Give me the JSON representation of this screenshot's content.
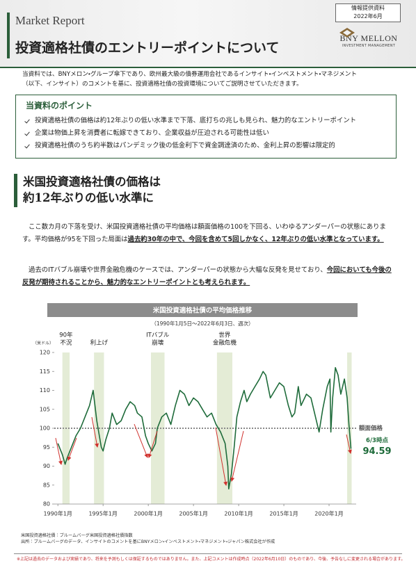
{
  "header": {
    "label": "Market Report",
    "title": "投資適格社債のエントリーポイントについて",
    "badge": [
      "情報提供資料",
      "2022年6月"
    ],
    "logo": [
      "BNY MELLON",
      "INVESTMENT MANAGEMENT"
    ]
  },
  "intro": [
    "当資料では、BNYメロン・グループ傘下であり、欧州最大級の債券運用会社であるインサイト・インベストメント・マネジメント",
    "（以下、インサイト）のコメントを基に、投資適格社債の投資環境についてご説明させていただきます。"
  ],
  "points": {
    "title": "当資料のポイント",
    "items": [
      "投資適格社債の価格は約12年ぶりの低い水準まで下落、底打ちの兆しも見られ、魅力的なエントリーポイント",
      "企業は物価上昇を消費者に転嫁できており、企業収益が圧迫される可能性は低い",
      "投資適格社債のうち約半数はパンデミック後の低金利下で資金調達済のため、金利上昇の影響は限定的"
    ]
  },
  "section": {
    "title": [
      "米国投資適格社債の価格は",
      "約12年ぶりの低い水準に"
    ]
  },
  "paragraphs": [
    [
      "ここ数カ月の下落を受け、米国投資適格社債の平均価格は額面価格の100を下回る、いわゆるアンダーパーの状態にあります。平均価格が95を下回った局面は",
      "過去約30年の中で、今回を含めて5回しかなく、12年ぶりの低い水準となっています。"
    ],
    [
      "過去のITバブル崩壊や世界金融危機のケースでは、アンダーパーの状態から大幅な反発を見せており、",
      "今回においても今後の反発が期待されることから、魅力的なエントリーポイントとも考えられます。"
    ]
  ],
  "chart_data": {
    "type": "line",
    "title": "米国投資適格社債の平均価格推移",
    "subtitle": "（1990年1月5日～2022年6月3日、週次）",
    "y_unit_label": "（米ドル）",
    "xlim": [
      1989.6,
      2023.0
    ],
    "ylim": [
      80,
      120
    ],
    "xticks": [
      {
        "value": 1990,
        "label": "1990年1月"
      },
      {
        "value": 1995,
        "label": "1995年1月"
      },
      {
        "value": 2000,
        "label": "2000年1月"
      },
      {
        "value": 2005,
        "label": "2005年1月"
      },
      {
        "value": 2010,
        "label": "2010年1月"
      },
      {
        "value": 2015,
        "label": "2015年1月"
      },
      {
        "value": 2020,
        "label": "2020年1月"
      }
    ],
    "yticks": [
      80,
      85,
      90,
      95,
      100,
      105,
      110,
      115,
      120
    ],
    "series": [
      {
        "color": "#1e6b3a",
        "x": [
          1990.0,
          1990.5,
          1990.8,
          1991.0,
          1991.5,
          1992.0,
          1992.5,
          1993.0,
          1993.5,
          1993.9,
          1994.3,
          1994.8,
          1995.0,
          1995.3,
          1995.7,
          1996.0,
          1996.5,
          1997.0,
          1997.5,
          1998.0,
          1998.5,
          1998.8,
          1999.3,
          1999.7,
          2000.0,
          2000.4,
          2000.8,
          2001.0,
          2001.5,
          2002.0,
          2002.5,
          2003.0,
          2003.5,
          2004.0,
          2004.5,
          2005.0,
          2005.5,
          2006.0,
          2006.5,
          2007.0,
          2007.5,
          2008.0,
          2008.5,
          2008.8,
          2008.9,
          2009.2,
          2009.5,
          2009.8,
          2010.2,
          2010.6,
          2010.9,
          2011.3,
          2011.8,
          2012.3,
          2012.7,
          2013.0,
          2013.5,
          2014.0,
          2014.5,
          2015.0,
          2015.5,
          2015.9,
          2016.2,
          2016.6,
          2016.9,
          2017.5,
          2018.0,
          2018.5,
          2018.9,
          2019.3,
          2019.8,
          2020.1,
          2020.2,
          2020.4,
          2020.7,
          2021.0,
          2021.3,
          2021.7,
          2022.0,
          2022.2,
          2022.42
        ],
        "values": [
          96,
          93,
          90.5,
          92,
          95,
          98,
          100,
          103,
          106,
          110,
          102,
          95,
          94,
          97,
          100,
          104,
          101,
          102,
          105,
          107,
          106,
          104,
          103,
          98,
          96,
          94,
          96,
          100,
          103,
          104,
          101,
          106,
          110,
          109,
          106,
          108,
          107,
          105,
          103,
          104,
          101,
          99,
          96,
          90,
          84,
          88,
          95,
          103,
          107,
          110,
          107,
          109,
          111,
          113,
          115,
          114,
          108,
          110,
          112,
          111,
          106,
          103,
          104,
          111,
          106,
          109,
          108,
          103,
          99,
          105,
          111,
          113,
          99,
          108,
          116,
          114,
          109,
          113,
          108,
          101,
          94.59
        ]
      }
    ],
    "reference_line": {
      "value": 100,
      "label": "額面価格",
      "color": "#888888"
    },
    "shaded_periods": [
      {
        "start": 1990.5,
        "end": 1991.3,
        "label_lines": [
          "90年",
          "不況"
        ]
      },
      {
        "start": 1994.0,
        "end": 1995.1,
        "label_lines": [
          "利上げ"
        ]
      },
      {
        "start": 2000.3,
        "end": 2001.8,
        "label_lines": [
          "ITバブル",
          "崩壊"
        ]
      },
      {
        "start": 2007.6,
        "end": 2009.3,
        "label_lines": [
          "世界",
          "金融危機"
        ]
      },
      {
        "start": 2022.0,
        "end": 2022.5,
        "label_lines": []
      }
    ],
    "shade_color": "#e4ecd6",
    "last_point_label": "6/3時点"
  },
  "notes": [
    "米国投資適格社債：ブルームバーグ米国投資適格社債指数",
    "出所：ブルームバーグのデータ、インサイトのコメントを基にBNYメロン・インベストメント・マネジメント・ジャパン株式会社が作成"
  ],
  "disclaimer": "※上記は過去のデータおよび実績であり、将来を予測もしくは保証するものではありません。また、上記コメントは作成時点（2022年6月10日）のものであり、今後、予告なしに変更される場合があります。"
}
